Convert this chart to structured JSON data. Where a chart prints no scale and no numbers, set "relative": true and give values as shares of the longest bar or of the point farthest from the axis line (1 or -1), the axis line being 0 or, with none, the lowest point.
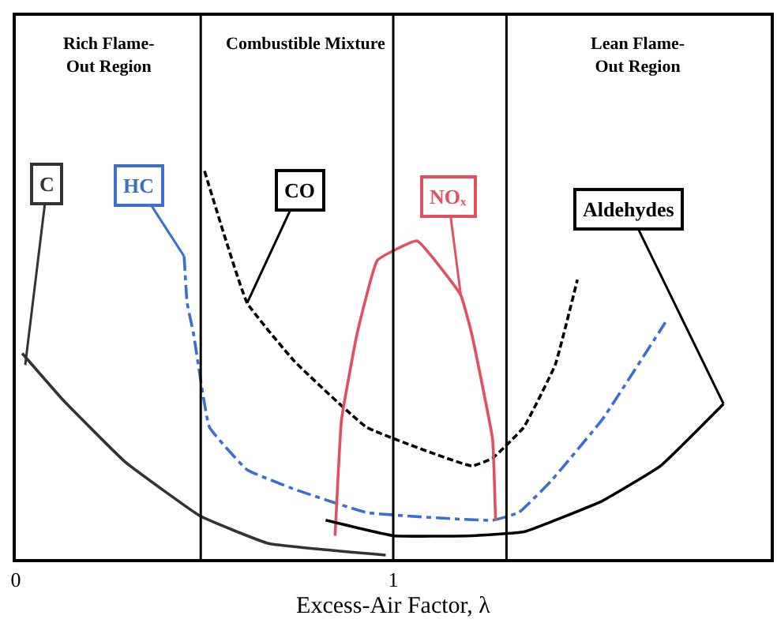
{
  "chart_data": {
    "type": "line",
    "relative": true,
    "xlabel": "Excess-Air Factor, λ",
    "xlim": [
      0,
      2
    ],
    "xticks": [
      0,
      1
    ],
    "grid": false,
    "marker": "none",
    "series": [
      {
        "color": "#333333",
        "line_style": "solid",
        "x": [
          0.017,
          0.125,
          0.29,
          0.49,
          0.67,
          0.98
        ],
        "values": [
          0.53,
          0.41,
          0.25,
          0.11,
          0.04,
          0.01
        ]
      },
      {
        "color": "#3a6fd0",
        "line_style": "dashdot",
        "x": [
          0.446,
          0.454,
          0.471,
          0.513,
          0.613,
          0.738,
          0.929,
          1.263,
          1.333,
          1.417,
          1.554,
          1.721
        ],
        "values": [
          0.78,
          0.66,
          0.58,
          0.34,
          0.23,
          0.18,
          0.12,
          0.1,
          0.12,
          0.2,
          0.36,
          0.61
        ]
      },
      {
        "color": "#000000",
        "line_style": "dashed",
        "x": [
          0.5,
          0.613,
          0.738,
          0.929,
          1.208,
          1.263,
          1.346,
          1.429,
          1.488
        ],
        "values": [
          1.0,
          0.66,
          0.51,
          0.34,
          0.24,
          0.26,
          0.34,
          0.5,
          0.72
        ]
      },
      {
        "color": "#e05060",
        "line_style": "solid",
        "x": [
          0.846,
          0.863,
          0.904,
          0.958,
          1.063,
          1.179,
          1.208,
          1.263,
          1.271
        ],
        "values": [
          0.06,
          0.36,
          0.58,
          0.77,
          0.82,
          0.68,
          0.58,
          0.31,
          0.1
        ]
      },
      {
        "color": "#000000",
        "line_style": "solid",
        "x": [
          0.821,
          1.0,
          1.208,
          1.346,
          1.554,
          1.708,
          1.875
        ],
        "values": [
          0.1,
          0.06,
          0.06,
          0.07,
          0.15,
          0.24,
          0.4
        ]
      }
    ],
    "ref_lines": [
      {
        "axis": "x",
        "value": 0.49
      },
      {
        "axis": "x",
        "value": 1
      },
      {
        "axis": "x",
        "value": 1.3
      }
    ],
    "annotations": [
      "Rich Flame-\nOut Region",
      "Combustible Mixture",
      "Lean Flame-\nOut Region",
      {
        "text": "C",
        "x": 0.025,
        "y": 0.5
      },
      {
        "text": "HC",
        "x": 0.446,
        "y": 0.78
      },
      {
        "text": "CO",
        "x": 0.613,
        "y": 0.66
      },
      {
        "text": "NOₓ",
        "x": 1.179,
        "y": 0.68
      },
      {
        "text": "Aldehydes",
        "x": 1.875,
        "y": 0.4
      }
    ]
  }
}
